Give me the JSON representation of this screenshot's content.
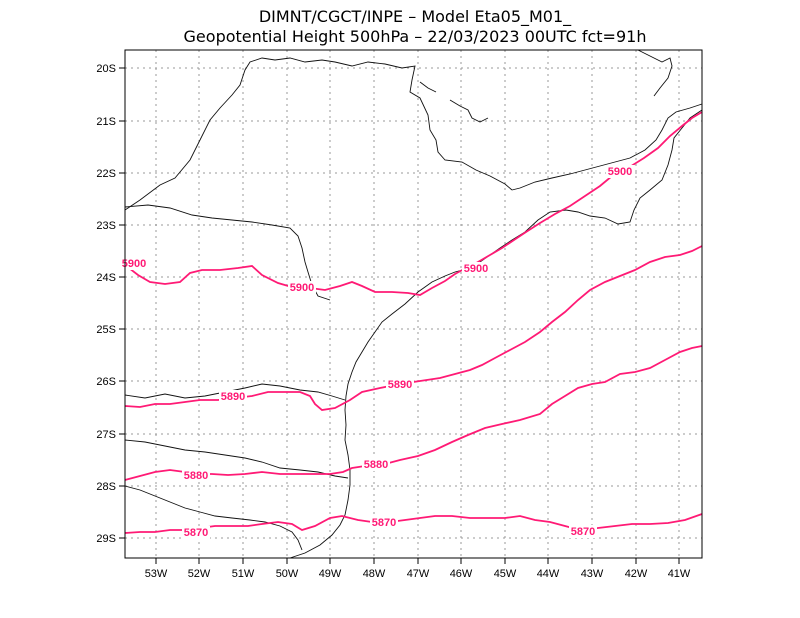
{
  "header": {
    "line1": "DIMNT/CGCT/INPE  –   Model Eta05_M01_",
    "line2": "Geopotential Height 500hPa  –   22/03/2023 00UTC fct=91h"
  },
  "axes": {
    "lat_labels": [
      "20S",
      "21S",
      "22S",
      "23S",
      "24S",
      "25S",
      "26S",
      "27S",
      "28S",
      "29S"
    ],
    "lon_labels": [
      "53W",
      "52W",
      "51W",
      "50W",
      "49W",
      "48W",
      "47W",
      "46W",
      "45W",
      "44W",
      "43W",
      "42W",
      "41W"
    ]
  },
  "contours": {
    "line_color": "#ff1a75",
    "levels": [
      {
        "value": "5900",
        "labels": [
          "5900",
          "5900",
          "5900",
          "5900"
        ]
      },
      {
        "value": "5890",
        "labels": [
          "5890",
          "5890"
        ]
      },
      {
        "value": "5880",
        "labels": [
          "5880",
          "5880"
        ]
      },
      {
        "value": "5870",
        "labels": [
          "5870",
          "5870",
          "5870"
        ]
      }
    ]
  }
}
